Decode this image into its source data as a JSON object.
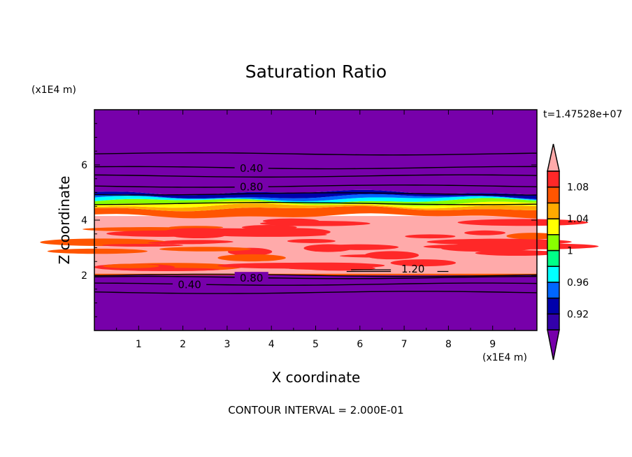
{
  "chart_data": {
    "type": "heatmap",
    "subtype": "filled-contour",
    "title": "Saturation Ratio",
    "xlabel": "X coordinate",
    "ylabel": "Z coordinate",
    "x_units": "(x1E4 m)",
    "y_units": "(x1E4 m)",
    "xlim": [
      0,
      10
    ],
    "ylim": [
      0,
      8
    ],
    "x_ticks": [
      1,
      2,
      3,
      4,
      5,
      6,
      7,
      8,
      9
    ],
    "y_ticks": [
      2,
      4,
      6
    ],
    "time_label": "t=1.47528e+07",
    "footer": "CONTOUR INTERVAL = 2.000E-01",
    "colorbar": {
      "levels": [
        0.9,
        0.92,
        0.94,
        0.96,
        0.98,
        1.0,
        1.02,
        1.04,
        1.06,
        1.08,
        1.1
      ],
      "tick_labels": [
        "0.92",
        "0.96",
        "1",
        "1.04",
        "1.08"
      ],
      "tick_values": [
        0.92,
        0.96,
        1.0,
        1.04,
        1.08
      ],
      "under_color": "#7700aa",
      "over_color": "#ffaaaa",
      "colors": [
        "#3300aa",
        "#0000aa",
        "#0066ff",
        "#00ffff",
        "#00ff88",
        "#88ff00",
        "#ffff00",
        "#ffaa00",
        "#ff5500",
        "#ff2828"
      ]
    },
    "layers": [
      {
        "z_range": [
          0,
          2.0
        ],
        "level": "under"
      },
      {
        "z_range": [
          2.0,
          2.06
        ],
        "level": "mixed"
      },
      {
        "z_range": [
          2.06,
          4.15
        ],
        "level": "over",
        "streaks": "#ff2828"
      },
      {
        "z_range": [
          4.15,
          4.42
        ],
        "level": "#ff5500"
      },
      {
        "z_range": [
          4.42,
          4.52
        ],
        "level": "#ffaa00"
      },
      {
        "z_range": [
          4.52,
          4.6
        ],
        "level": "#ffff00"
      },
      {
        "z_range": [
          4.6,
          4.7
        ],
        "level": "#88ff00"
      },
      {
        "z_range": [
          4.7,
          4.78
        ],
        "level": "#00ffff"
      },
      {
        "z_range": [
          4.78,
          4.85
        ],
        "level": "#0066ff"
      },
      {
        "z_range": [
          4.85,
          5.0
        ],
        "level": "#0000aa"
      },
      {
        "z_range": [
          5.0,
          8.0
        ],
        "level": "under"
      }
    ],
    "contour_lines": [
      {
        "z": 6.4
      },
      {
        "z": 5.9,
        "label": "0.40"
      },
      {
        "z": 5.6
      },
      {
        "z": 5.23,
        "label": "0.80"
      },
      {
        "z": 4.95
      },
      {
        "z": 4.6
      },
      {
        "z": 2.0
      },
      {
        "z": 1.92,
        "label": "0.80"
      },
      {
        "z": 1.68,
        "label": "0.40"
      },
      {
        "z": 1.38
      }
    ],
    "contour_label_extra": {
      "label": "1.20",
      "x": 7.2,
      "z": 2.2
    }
  }
}
